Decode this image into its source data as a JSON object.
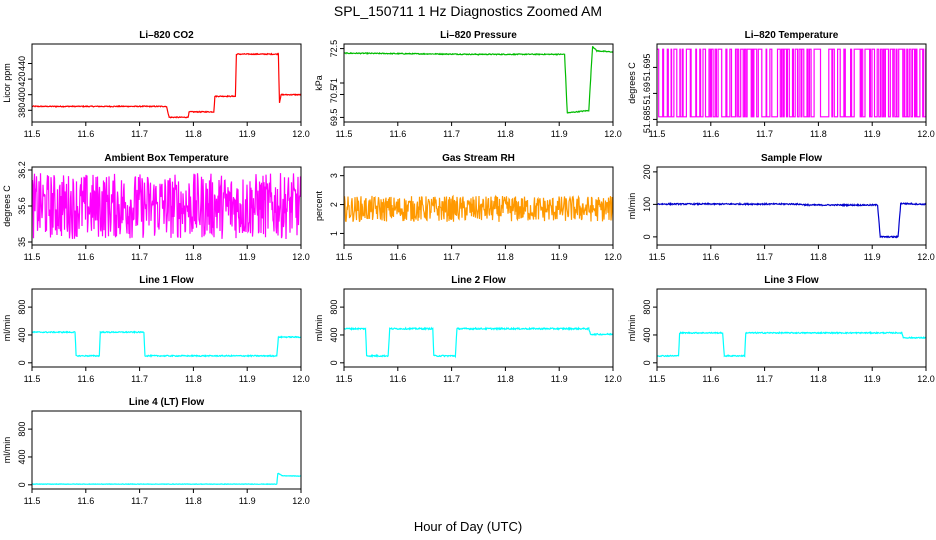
{
  "figure": {
    "title": "SPL_150711  1 Hz Diagnostics Zoomed AM",
    "xlabel": "Hour of Day (UTC)"
  },
  "chart_data": [
    {
      "type": "line",
      "title": "Li–820 CO2",
      "ylabel": "Licor ppm",
      "xlim": [
        11.5,
        12.0
      ],
      "ylim": [
        365,
        465
      ],
      "xticks": [
        11.5,
        11.6,
        11.7,
        11.8,
        11.9,
        12.0
      ],
      "yticks": [
        380,
        400,
        420,
        440
      ],
      "color": "#ff0000",
      "series": [
        {
          "noise": 0.6,
          "points": [
            [
              11.5,
              385
            ],
            [
              11.75,
              385
            ],
            [
              11.755,
              371
            ],
            [
              11.79,
              371
            ],
            [
              11.792,
              378
            ],
            [
              11.838,
              378
            ],
            [
              11.84,
              398
            ],
            [
              11.878,
              398
            ],
            [
              11.88,
              452
            ],
            [
              11.958,
              452
            ],
            [
              11.96,
              390
            ],
            [
              11.963,
              400
            ],
            [
              12.0,
              400
            ]
          ]
        }
      ]
    },
    {
      "type": "line",
      "title": "Li–820 Pressure",
      "ylabel": "kPa",
      "xlim": [
        11.5,
        12.0
      ],
      "ylim": [
        69.3,
        72.7
      ],
      "xticks": [
        11.5,
        11.6,
        11.7,
        11.8,
        11.9,
        12.0
      ],
      "yticks": [
        69.5,
        70.5,
        71.0,
        72.5
      ],
      "color": "#00bb00",
      "series": [
        {
          "noise": 0.02,
          "points": [
            [
              11.5,
              72.3
            ],
            [
              11.75,
              72.25
            ],
            [
              11.91,
              72.25
            ],
            [
              11.915,
              69.7
            ],
            [
              11.955,
              69.8
            ],
            [
              11.962,
              72.6
            ],
            [
              11.97,
              72.4
            ],
            [
              12.0,
              72.35
            ]
          ]
        }
      ]
    },
    {
      "type": "line",
      "title": "Li–820 Temperature",
      "ylabel": "degrees C",
      "xlim": [
        11.5,
        12.0
      ],
      "ylim": [
        51.6845,
        51.6995
      ],
      "xticks": [
        11.5,
        11.6,
        11.7,
        11.8,
        11.9,
        12.0
      ],
      "yticks": [
        51.685,
        51.69,
        51.695
      ],
      "color": "#ff00ff",
      "series": [
        {
          "levels": [
            51.6855,
            51.6985
          ],
          "points": [
            [
              11.5,
              51.6985
            ],
            [
              12.0,
              51.6985
            ]
          ]
        }
      ]
    },
    {
      "type": "line",
      "title": "Ambient Box Temperature",
      "ylabel": "degrees C",
      "xlim": [
        11.5,
        12.0
      ],
      "ylim": [
        34.95,
        36.25
      ],
      "xticks": [
        11.5,
        11.6,
        11.7,
        11.8,
        11.9,
        12.0
      ],
      "yticks": [
        35.0,
        35.6,
        36.2
      ],
      "color": "#ff00ff",
      "series": [
        {
          "noise": 0.55,
          "points": [
            [
              11.5,
              35.6
            ],
            [
              12.0,
              35.6
            ]
          ]
        }
      ]
    },
    {
      "type": "line",
      "title": "Gas Stream RH",
      "ylabel": "percent",
      "xlim": [
        11.5,
        12.0
      ],
      "ylim": [
        0.6,
        3.3
      ],
      "xticks": [
        11.5,
        11.6,
        11.7,
        11.8,
        11.9,
        12.0
      ],
      "yticks": [
        1.0,
        2.0,
        3.0
      ],
      "color": "#ff9900",
      "series": [
        {
          "noise": 0.45,
          "points": [
            [
              11.5,
              1.85
            ],
            [
              12.0,
              1.85
            ]
          ]
        }
      ]
    },
    {
      "type": "line",
      "title": "Sample Flow",
      "ylabel": "ml/min",
      "xlim": [
        11.5,
        12.0
      ],
      "ylim": [
        -25,
        215
      ],
      "xticks": [
        11.5,
        11.6,
        11.7,
        11.8,
        11.9,
        12.0
      ],
      "yticks": [
        0,
        100,
        200
      ],
      "color": "#0000cc",
      "series": [
        {
          "noise": 2,
          "points": [
            [
              11.5,
              101
            ],
            [
              11.76,
              101
            ],
            [
              11.78,
              98
            ],
            [
              11.91,
              98
            ],
            [
              11.915,
              0
            ],
            [
              11.948,
              0
            ],
            [
              11.953,
              103
            ],
            [
              12.0,
              100
            ]
          ]
        }
      ]
    },
    {
      "type": "line",
      "title": "Line 1 Flow",
      "ylabel": "ml/min",
      "xlim": [
        11.5,
        12.0
      ],
      "ylim": [
        -60,
        1060
      ],
      "xticks": [
        11.5,
        11.6,
        11.7,
        11.8,
        11.9,
        12.0
      ],
      "yticks": [
        0,
        400,
        800
      ],
      "color": "#00ffff",
      "series": [
        {
          "noise": 8,
          "points": [
            [
              11.5,
              440
            ],
            [
              11.58,
              440
            ],
            [
              11.582,
              100
            ],
            [
              11.625,
              100
            ],
            [
              11.627,
              440
            ],
            [
              11.708,
              440
            ],
            [
              11.71,
              100
            ],
            [
              11.955,
              100
            ],
            [
              11.958,
              370
            ],
            [
              12.0,
              370
            ]
          ]
        }
      ]
    },
    {
      "type": "line",
      "title": "Line 2 Flow",
      "ylabel": "ml/min",
      "xlim": [
        11.5,
        12.0
      ],
      "ylim": [
        -60,
        1060
      ],
      "xticks": [
        11.5,
        11.6,
        11.7,
        11.8,
        11.9,
        12.0
      ],
      "yticks": [
        0,
        400,
        800
      ],
      "color": "#00ffff",
      "series": [
        {
          "noise": 10,
          "points": [
            [
              11.5,
              490
            ],
            [
              11.54,
              490
            ],
            [
              11.542,
              100
            ],
            [
              11.582,
              100
            ],
            [
              11.585,
              490
            ],
            [
              11.665,
              490
            ],
            [
              11.667,
              100
            ],
            [
              11.707,
              100
            ],
            [
              11.71,
              490
            ],
            [
              11.955,
              490
            ],
            [
              11.958,
              410
            ],
            [
              12.0,
              410
            ]
          ]
        }
      ]
    },
    {
      "type": "line",
      "title": "Line 3 Flow",
      "ylabel": "ml/min",
      "xlim": [
        11.5,
        12.0
      ],
      "ylim": [
        -60,
        1060
      ],
      "xticks": [
        11.5,
        11.6,
        11.7,
        11.8,
        11.9,
        12.0
      ],
      "yticks": [
        0,
        400,
        800
      ],
      "color": "#00ffff",
      "series": [
        {
          "noise": 8,
          "points": [
            [
              11.5,
              100
            ],
            [
              11.54,
              100
            ],
            [
              11.542,
              430
            ],
            [
              11.622,
              430
            ],
            [
              11.625,
              100
            ],
            [
              11.663,
              100
            ],
            [
              11.665,
              430
            ],
            [
              11.955,
              430
            ],
            [
              11.958,
              360
            ],
            [
              12.0,
              360
            ]
          ]
        }
      ]
    },
    {
      "type": "line",
      "title": "Line 4 (LT) Flow",
      "ylabel": "ml/min",
      "xlim": [
        11.5,
        12.0
      ],
      "ylim": [
        -60,
        1060
      ],
      "xticks": [
        11.5,
        11.6,
        11.7,
        11.8,
        11.9,
        12.0
      ],
      "yticks": [
        0,
        400,
        800
      ],
      "color": "#00ffff",
      "series": [
        {
          "noise": 3,
          "points": [
            [
              11.5,
              10
            ],
            [
              11.955,
              10
            ],
            [
              11.957,
              170
            ],
            [
              11.965,
              130
            ],
            [
              12.0,
              125
            ]
          ]
        }
      ]
    }
  ]
}
